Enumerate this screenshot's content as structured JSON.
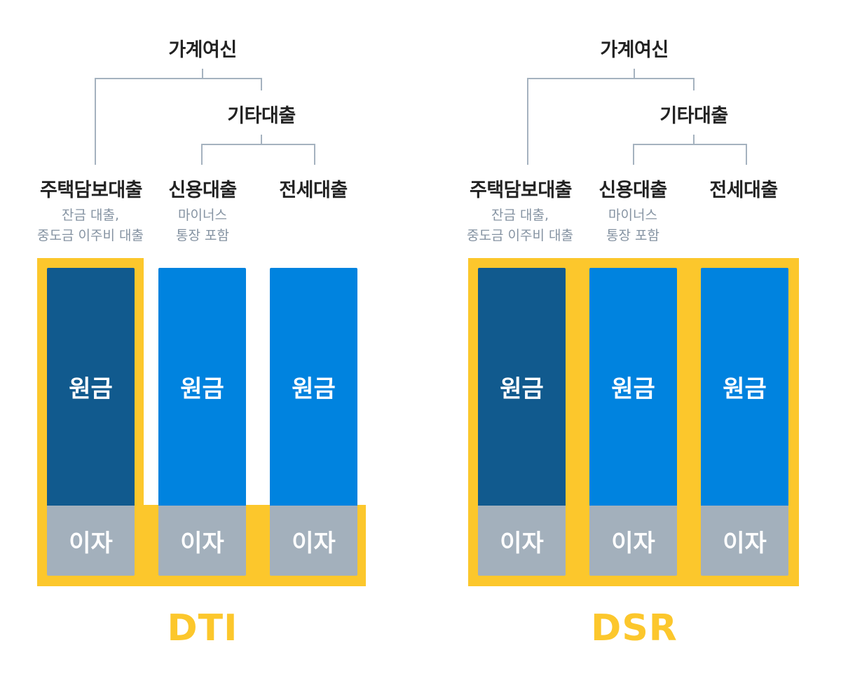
{
  "colors": {
    "highlight": "#fcc72c",
    "mortgage_principal": "#115a8e",
    "other_principal": "#0083df",
    "interest": "#a3b0bc",
    "tree_line": "#a5b2bf",
    "note_text": "#8593a2"
  },
  "diagrams": [
    {
      "label": "DTI",
      "root": "가계여신",
      "group": "기타대출",
      "loans": [
        {
          "name": "주택담보대출",
          "note_line1": "잔금 대출,",
          "note_line2": "중도금 이주비 대출",
          "principal": "원금",
          "interest": "이자"
        },
        {
          "name": "신용대출",
          "note_line1": "마이너스",
          "note_line2": "통장 포함",
          "principal": "원금",
          "interest": "이자"
        },
        {
          "name": "전세대출",
          "note_line1": "",
          "note_line2": "",
          "principal": "원금",
          "interest": "이자"
        }
      ]
    },
    {
      "label": "DSR",
      "root": "가계여신",
      "group": "기타대출",
      "loans": [
        {
          "name": "주택담보대출",
          "note_line1": "잔금 대출,",
          "note_line2": "중도금 이주비 대출",
          "principal": "원금",
          "interest": "이자"
        },
        {
          "name": "신용대출",
          "note_line1": "마이너스",
          "note_line2": "통장 포함",
          "principal": "원금",
          "interest": "이자"
        },
        {
          "name": "전세대출",
          "note_line1": "",
          "note_line2": "",
          "principal": "원금",
          "interest": "이자"
        }
      ]
    }
  ]
}
